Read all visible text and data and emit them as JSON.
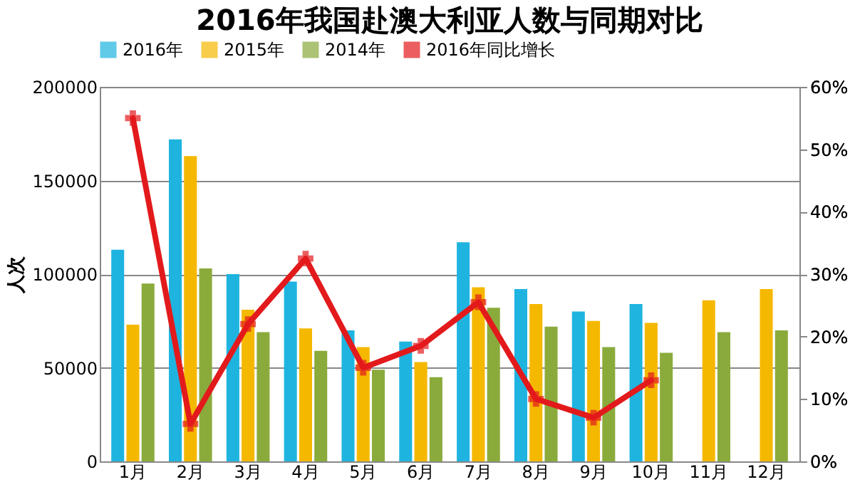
{
  "chart_data": {
    "type": "bar",
    "title": "2016年我国赴澳大利亚人数与同期对比",
    "ylabel": "人次",
    "categories": [
      "1月",
      "2月",
      "3月",
      "4月",
      "5月",
      "6月",
      "7月",
      "8月",
      "9月",
      "10月",
      "11月",
      "12月"
    ],
    "series": [
      {
        "name": "2016年",
        "color": "#1fb4e0",
        "values": [
          113000,
          172000,
          100000,
          96000,
          70000,
          64000,
          117000,
          92000,
          80000,
          84000,
          null,
          null
        ]
      },
      {
        "name": "2015年",
        "color": "#f5b800",
        "values": [
          73000,
          163000,
          81000,
          71000,
          61000,
          53000,
          93000,
          84000,
          75000,
          74000,
          86000,
          92000
        ]
      },
      {
        "name": "2014年",
        "color": "#8aab3c",
        "values": [
          95000,
          103000,
          69000,
          59000,
          49000,
          45000,
          82000,
          72000,
          61000,
          58000,
          69000,
          70000
        ]
      },
      {
        "name": "2016年同比增长",
        "color": "#e31a1c",
        "type": "line",
        "axis": "y2",
        "marker": "cross",
        "values": [
          55,
          6,
          22,
          32.5,
          15,
          18.5,
          25.5,
          10,
          7,
          13,
          null,
          null
        ]
      }
    ],
    "ylim": [
      0,
      200000
    ],
    "yticks": [
      0,
      50000,
      100000,
      150000,
      200000
    ],
    "y2lim": [
      0,
      60
    ],
    "y2ticks": [
      {
        "value": 0,
        "label": "0%"
      },
      {
        "value": 10,
        "label": "10%"
      },
      {
        "value": 20,
        "label": "20%"
      },
      {
        "value": 30,
        "label": "30%"
      },
      {
        "value": 40,
        "label": "40%"
      },
      {
        "value": 50,
        "label": "50%"
      },
      {
        "value": 60,
        "label": "60%"
      }
    ],
    "grid": "y",
    "legend": "top"
  }
}
